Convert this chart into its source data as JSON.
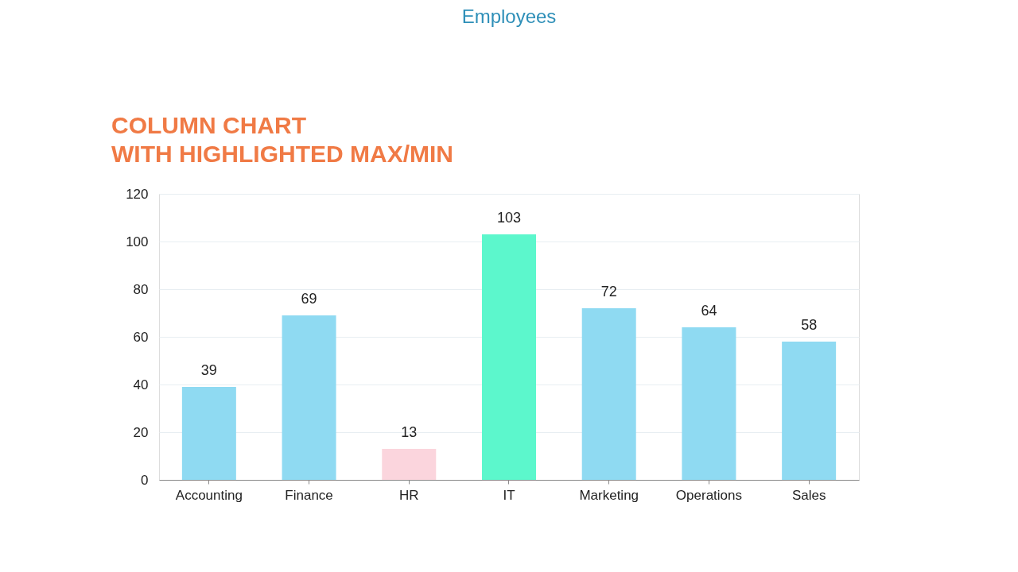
{
  "chart_data": {
    "type": "bar",
    "title": "Employees",
    "annotations": [
      "COLUMN CHART",
      "WITH HIGHLIGHTED MAX/MIN"
    ],
    "categories": [
      "Accounting",
      "Finance",
      "HR",
      "IT",
      "Marketing",
      "Operations",
      "Sales"
    ],
    "values": [
      39,
      69,
      13,
      103,
      72,
      64,
      58
    ],
    "colors": [
      "#8fdaf2",
      "#8fdaf2",
      "#fbd5dd",
      "#5cf7cc",
      "#8fdaf2",
      "#8fdaf2",
      "#8fdaf2"
    ],
    "ylim": [
      0,
      120
    ],
    "yticks": [
      0,
      20,
      40,
      60,
      80,
      100,
      120
    ],
    "grid": "y",
    "data_labels": true
  }
}
